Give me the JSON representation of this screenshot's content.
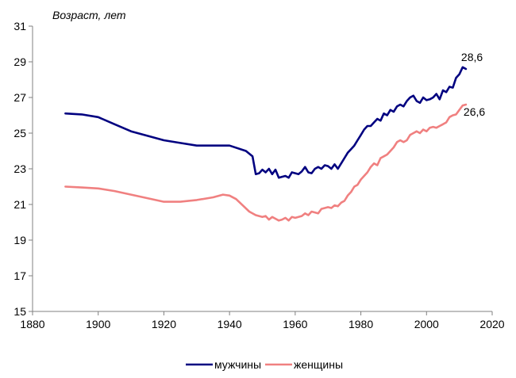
{
  "chart_data": {
    "type": "line",
    "title": "",
    "xlabel": "",
    "ylabel": "Возраст, лет",
    "xlim": [
      1880,
      2020
    ],
    "ylim": [
      15,
      31
    ],
    "xticks": [
      1880,
      1900,
      1920,
      1940,
      1960,
      1980,
      2000,
      2020
    ],
    "yticks": [
      15,
      17,
      19,
      21,
      23,
      25,
      27,
      29,
      31
    ],
    "grid": false,
    "legend": "bottom",
    "series": [
      {
        "name": "мужчины",
        "color": "#000080",
        "end_label": "28,6",
        "points": [
          [
            1890,
            26.1
          ],
          [
            1895,
            26.05
          ],
          [
            1900,
            25.9
          ],
          [
            1905,
            25.5
          ],
          [
            1910,
            25.1
          ],
          [
            1915,
            24.85
          ],
          [
            1920,
            24.6
          ],
          [
            1925,
            24.45
          ],
          [
            1930,
            24.3
          ],
          [
            1935,
            24.3
          ],
          [
            1940,
            24.3
          ],
          [
            1945,
            24.0
          ],
          [
            1947,
            23.7
          ],
          [
            1948,
            22.7
          ],
          [
            1949,
            22.75
          ],
          [
            1950,
            22.95
          ],
          [
            1951,
            22.8
          ],
          [
            1952,
            23.0
          ],
          [
            1953,
            22.7
          ],
          [
            1954,
            22.95
          ],
          [
            1955,
            22.5
          ],
          [
            1956,
            22.55
          ],
          [
            1957,
            22.6
          ],
          [
            1958,
            22.5
          ],
          [
            1959,
            22.8
          ],
          [
            1960,
            22.75
          ],
          [
            1961,
            22.7
          ],
          [
            1962,
            22.85
          ],
          [
            1963,
            23.1
          ],
          [
            1964,
            22.8
          ],
          [
            1965,
            22.75
          ],
          [
            1966,
            23.0
          ],
          [
            1967,
            23.1
          ],
          [
            1968,
            23.0
          ],
          [
            1969,
            23.2
          ],
          [
            1970,
            23.15
          ],
          [
            1971,
            23.0
          ],
          [
            1972,
            23.25
          ],
          [
            1973,
            23.0
          ],
          [
            1974,
            23.3
          ],
          [
            1975,
            23.6
          ],
          [
            1976,
            23.9
          ],
          [
            1977,
            24.1
          ],
          [
            1978,
            24.3
          ],
          [
            1979,
            24.6
          ],
          [
            1980,
            24.9
          ],
          [
            1981,
            25.2
          ],
          [
            1982,
            25.4
          ],
          [
            1983,
            25.4
          ],
          [
            1984,
            25.6
          ],
          [
            1985,
            25.8
          ],
          [
            1986,
            25.7
          ],
          [
            1987,
            26.1
          ],
          [
            1988,
            26.0
          ],
          [
            1989,
            26.3
          ],
          [
            1990,
            26.2
          ],
          [
            1991,
            26.5
          ],
          [
            1992,
            26.6
          ],
          [
            1993,
            26.5
          ],
          [
            1994,
            26.8
          ],
          [
            1995,
            27.0
          ],
          [
            1996,
            27.1
          ],
          [
            1997,
            26.8
          ],
          [
            1998,
            26.7
          ],
          [
            1999,
            27.0
          ],
          [
            2000,
            26.85
          ],
          [
            2001,
            26.9
          ],
          [
            2002,
            27.0
          ],
          [
            2003,
            27.2
          ],
          [
            2004,
            26.9
          ],
          [
            2005,
            27.4
          ],
          [
            2006,
            27.3
          ],
          [
            2007,
            27.6
          ],
          [
            2008,
            27.55
          ],
          [
            2009,
            28.1
          ],
          [
            2010,
            28.3
          ],
          [
            2011,
            28.7
          ],
          [
            2012,
            28.6
          ]
        ]
      },
      {
        "name": "женщины",
        "color": "#F08080",
        "end_label": "26,6",
        "points": [
          [
            1890,
            22.0
          ],
          [
            1895,
            21.95
          ],
          [
            1900,
            21.9
          ],
          [
            1905,
            21.75
          ],
          [
            1910,
            21.55
          ],
          [
            1915,
            21.35
          ],
          [
            1920,
            21.15
          ],
          [
            1925,
            21.15
          ],
          [
            1930,
            21.25
          ],
          [
            1935,
            21.4
          ],
          [
            1938,
            21.55
          ],
          [
            1940,
            21.5
          ],
          [
            1942,
            21.3
          ],
          [
            1944,
            20.95
          ],
          [
            1946,
            20.6
          ],
          [
            1948,
            20.4
          ],
          [
            1950,
            20.3
          ],
          [
            1951,
            20.35
          ],
          [
            1952,
            20.15
          ],
          [
            1953,
            20.3
          ],
          [
            1954,
            20.2
          ],
          [
            1955,
            20.1
          ],
          [
            1956,
            20.15
          ],
          [
            1957,
            20.25
          ],
          [
            1958,
            20.1
          ],
          [
            1959,
            20.3
          ],
          [
            1960,
            20.25
          ],
          [
            1961,
            20.3
          ],
          [
            1962,
            20.35
          ],
          [
            1963,
            20.5
          ],
          [
            1964,
            20.4
          ],
          [
            1965,
            20.6
          ],
          [
            1966,
            20.55
          ],
          [
            1967,
            20.5
          ],
          [
            1968,
            20.75
          ],
          [
            1969,
            20.8
          ],
          [
            1970,
            20.85
          ],
          [
            1971,
            20.8
          ],
          [
            1972,
            20.95
          ],
          [
            1973,
            20.9
          ],
          [
            1974,
            21.1
          ],
          [
            1975,
            21.2
          ],
          [
            1976,
            21.5
          ],
          [
            1977,
            21.7
          ],
          [
            1978,
            22.0
          ],
          [
            1979,
            22.1
          ],
          [
            1980,
            22.4
          ],
          [
            1981,
            22.6
          ],
          [
            1982,
            22.8
          ],
          [
            1983,
            23.1
          ],
          [
            1984,
            23.3
          ],
          [
            1985,
            23.2
          ],
          [
            1986,
            23.6
          ],
          [
            1987,
            23.7
          ],
          [
            1988,
            23.8
          ],
          [
            1989,
            24.0
          ],
          [
            1990,
            24.2
          ],
          [
            1991,
            24.5
          ],
          [
            1992,
            24.6
          ],
          [
            1993,
            24.5
          ],
          [
            1994,
            24.6
          ],
          [
            1995,
            24.9
          ],
          [
            1996,
            25.0
          ],
          [
            1997,
            25.1
          ],
          [
            1998,
            25.0
          ],
          [
            1999,
            25.2
          ],
          [
            2000,
            25.1
          ],
          [
            2001,
            25.3
          ],
          [
            2002,
            25.35
          ],
          [
            2003,
            25.3
          ],
          [
            2004,
            25.4
          ],
          [
            2005,
            25.5
          ],
          [
            2006,
            25.6
          ],
          [
            2007,
            25.9
          ],
          [
            2008,
            26.0
          ],
          [
            2009,
            26.05
          ],
          [
            2010,
            26.3
          ],
          [
            2011,
            26.55
          ],
          [
            2012,
            26.6
          ]
        ]
      }
    ]
  }
}
